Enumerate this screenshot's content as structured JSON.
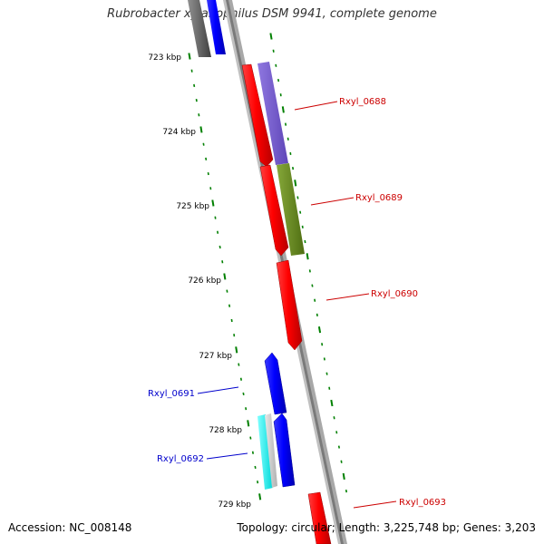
{
  "header": {
    "title": "Rubrobacter xylanophilus DSM 9941, complete genome"
  },
  "footer": {
    "accession": "Accession: NC_008148",
    "topology": "Topology: circular; Length: 3,225,748 bp; Genes: 3,203"
  },
  "ticks": [
    {
      "label": "723 kbp"
    },
    {
      "label": "724 kbp"
    },
    {
      "label": "725 kbp"
    },
    {
      "label": "726 kbp"
    },
    {
      "label": "727 kbp"
    },
    {
      "label": "728 kbp"
    },
    {
      "label": "729 kbp"
    }
  ],
  "genes": [
    {
      "label": "Rxyl_0688",
      "strand": "+",
      "color": "#cc0000"
    },
    {
      "label": "Rxyl_0689",
      "strand": "+",
      "color": "#cc0000"
    },
    {
      "label": "Rxyl_0690",
      "strand": "+",
      "color": "#cc0000"
    },
    {
      "label": "Rxyl_0691",
      "strand": "-",
      "color": "#0000cc"
    },
    {
      "label": "Rxyl_0692",
      "strand": "-",
      "color": "#0000cc"
    },
    {
      "label": "Rxyl_0693",
      "strand": "+",
      "color": "#cc0000"
    }
  ],
  "colors": {
    "forward_cds": "#ff0000",
    "reverse_cds": "#0000ff",
    "forward_label": "#cc0000",
    "reverse_label": "#0000cc",
    "backbone": "#808080",
    "tick_marks": "#008000",
    "purple_feature": "#7a5fd0",
    "green_feature": "#6b8e23",
    "cyan_feature": "#00ffff"
  }
}
